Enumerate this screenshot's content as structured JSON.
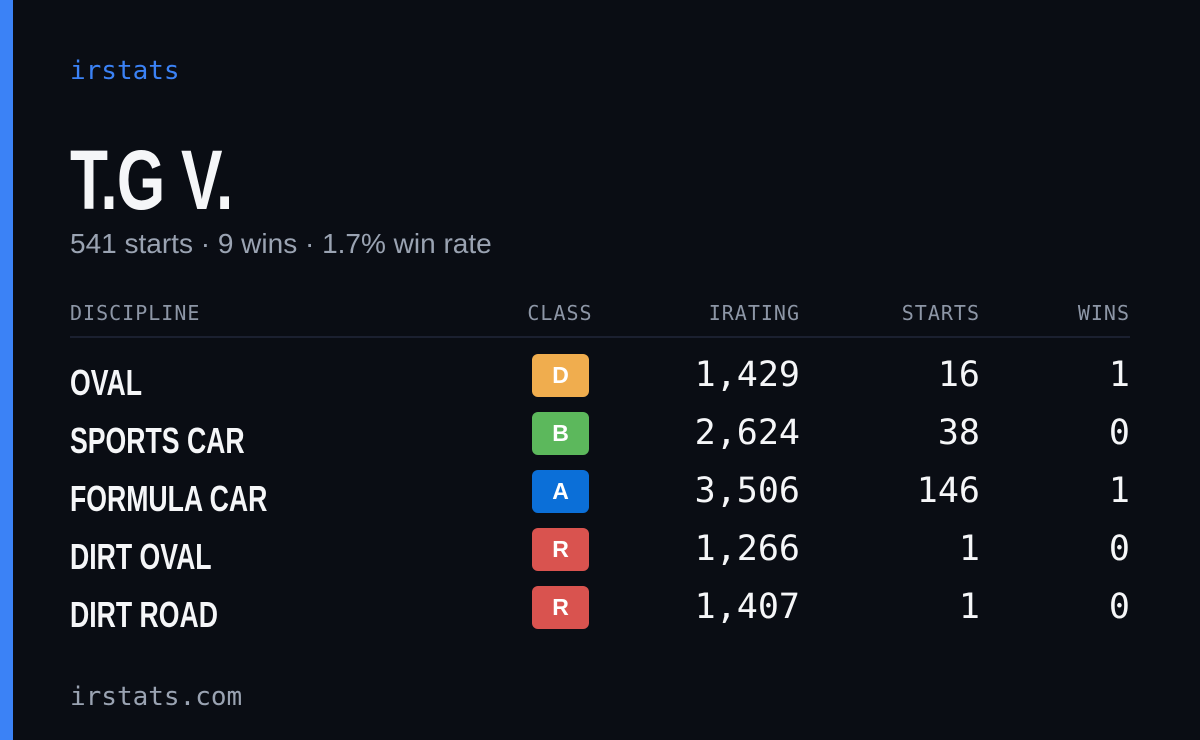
{
  "brand": "irstats",
  "driver": {
    "name": "T.G V.",
    "summary": "541 starts · 9 wins · 1.7% win rate"
  },
  "table": {
    "columns": [
      "DISCIPLINE",
      "CLASS",
      "IRATING",
      "STARTS",
      "WINS"
    ],
    "rows": [
      {
        "discipline": "OVAL",
        "class": "D",
        "color": "#f0ad4e",
        "irating": "1,429",
        "starts": "16",
        "wins": "1"
      },
      {
        "discipline": "SPORTS CAR",
        "class": "B",
        "color": "#5cb85c",
        "irating": "2,624",
        "starts": "38",
        "wins": "0"
      },
      {
        "discipline": "FORMULA CAR",
        "class": "A",
        "color": "#0b6fd8",
        "irating": "3,506",
        "starts": "146",
        "wins": "1"
      },
      {
        "discipline": "DIRT OVAL",
        "class": "R",
        "color": "#d9534f",
        "irating": "1,266",
        "starts": "1",
        "wins": "0"
      },
      {
        "discipline": "DIRT ROAD",
        "class": "R",
        "color": "#d9534f",
        "irating": "1,407",
        "starts": "1",
        "wins": "0"
      }
    ]
  },
  "footer": "irstats.com"
}
